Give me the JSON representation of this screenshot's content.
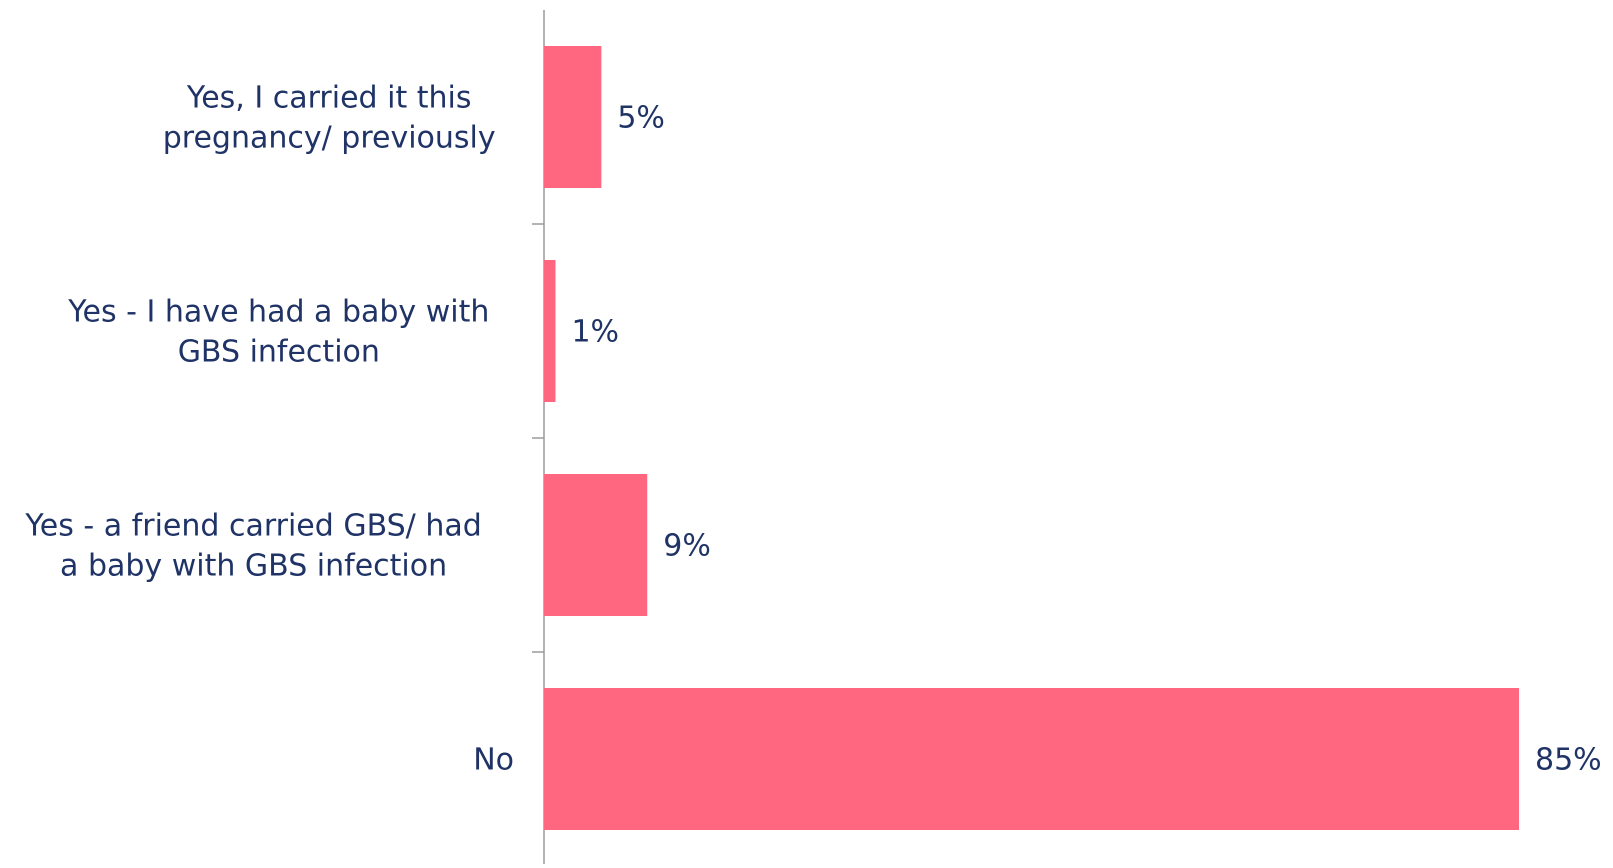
{
  "chart_data": {
    "type": "bar",
    "orientation": "horizontal",
    "title": "",
    "xlabel": "",
    "ylabel": "",
    "categories": [
      [
        "Yes, I carried it this",
        "pregnancy/ previously"
      ],
      [
        "Yes - I have had a baby with",
        "GBS infection"
      ],
      [
        "Yes - a friend carried GBS/ had",
        "a baby with GBS infection"
      ],
      [
        "No"
      ]
    ],
    "values": [
      5,
      1,
      9,
      85
    ],
    "value_labels": [
      "5%",
      "1%",
      "9%",
      "85%"
    ],
    "xlim": [
      0,
      85
    ],
    "grid": false,
    "legend": "none",
    "colors": {
      "bar": "#ff6680",
      "text": "#1f3366",
      "axis": "#9a9a9a"
    }
  }
}
